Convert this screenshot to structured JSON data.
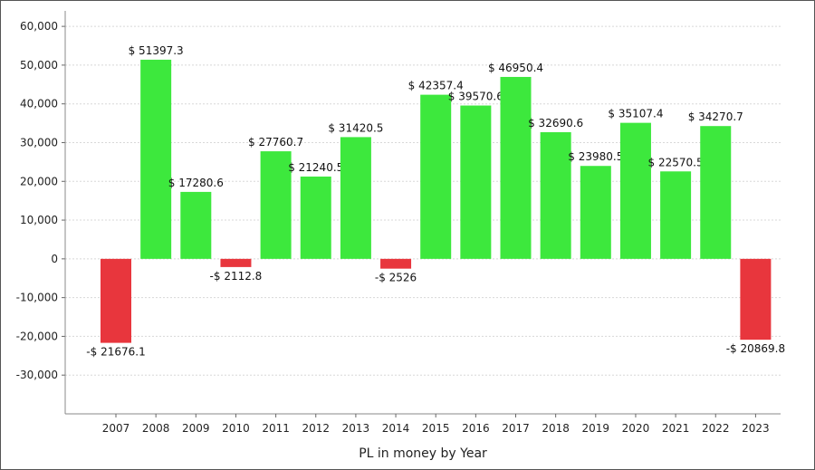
{
  "chart_data": {
    "type": "bar",
    "title": "",
    "xlabel": "PL in money by Year",
    "ylabel": "",
    "ylim": [
      -40000,
      64000
    ],
    "y_ticks": [
      -30000,
      -20000,
      -10000,
      0,
      10000,
      20000,
      30000,
      40000,
      50000,
      60000
    ],
    "y_tick_labels": [
      "-30,000",
      "-20,000",
      "-10,000",
      "0",
      "10,000",
      "20,000",
      "30,000",
      "40,000",
      "50,000",
      "60,000"
    ],
    "grid": true,
    "legend": "none",
    "colors": {
      "positive": "#3de83d",
      "negative": "#e8363d"
    },
    "categories": [
      "2007",
      "2008",
      "2009",
      "2010",
      "2011",
      "2012",
      "2013",
      "2014",
      "2015",
      "2016",
      "2017",
      "2018",
      "2019",
      "2020",
      "2021",
      "2022",
      "2023"
    ],
    "values": [
      -21676.1,
      51397.3,
      17280.6,
      -2112.8,
      27760.7,
      21240.5,
      31420.5,
      -2526,
      42357.4,
      39570.6,
      46950.4,
      32690.6,
      23980.5,
      35107.4,
      22570.5,
      34270.7,
      -20869.8
    ],
    "data_labels": [
      "-$ 21676.1",
      "$ 51397.3",
      "$ 17280.6",
      "-$ 2112.8",
      "$ 27760.7",
      "$ 21240.5",
      "$ 31420.5",
      "-$ 2526",
      "$ 42357.4",
      "$ 39570.6",
      "$ 46950.4",
      "$ 32690.6",
      "$ 23980.5",
      "$ 35107.4",
      "$ 22570.5",
      "$ 34270.7",
      "-$ 20869.8"
    ]
  }
}
